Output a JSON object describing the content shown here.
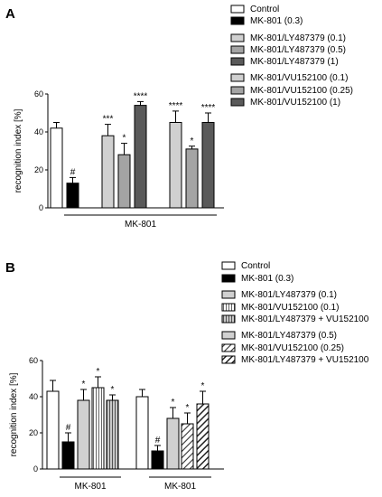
{
  "chart_data": [
    {
      "panel": "A",
      "type": "bar",
      "ylabel": "recognition index [%]",
      "ylim": [
        0,
        60
      ],
      "yticks": [
        0,
        20,
        40,
        60
      ],
      "legend_position": "top-right",
      "legend": [
        {
          "label": "Control",
          "pattern": "white"
        },
        {
          "label": "MK-801 (0.3)",
          "pattern": "black"
        },
        {
          "label": "MK-801/LY487379 (0.1)",
          "pattern": "lightgray"
        },
        {
          "label": "MK-801/LY487379 (0.5)",
          "pattern": "midgray"
        },
        {
          "label": "MK-801/LY487379 (1)",
          "pattern": "darkgray"
        },
        {
          "label": "MK-801/VU152100 (0.1)",
          "pattern": "lightgray"
        },
        {
          "label": "MK-801/VU152100 (0.25)",
          "pattern": "midgray"
        },
        {
          "label": "MK-801/VU152100 (1)",
          "pattern": "darkgray"
        }
      ],
      "bars": [
        {
          "value": 42,
          "error": 3,
          "pattern": "white",
          "sig": ""
        },
        {
          "value": 13,
          "error": 3,
          "pattern": "black",
          "sig": "#"
        },
        {
          "value": 38,
          "error": 6,
          "pattern": "lightgray",
          "sig": "***"
        },
        {
          "value": 28,
          "error": 6,
          "pattern": "midgray",
          "sig": "*"
        },
        {
          "value": 54,
          "error": 2,
          "pattern": "darkgray",
          "sig": "****"
        },
        {
          "value": 45,
          "error": 6,
          "pattern": "lightgray",
          "sig": "****"
        },
        {
          "value": 31,
          "error": 1.5,
          "pattern": "midgray",
          "sig": "*"
        },
        {
          "value": 45,
          "error": 5,
          "pattern": "darkgray",
          "sig": "****"
        }
      ],
      "group_labels": [
        {
          "label": "MK-801",
          "from_bar": 1,
          "to_bar": 7
        }
      ]
    },
    {
      "panel": "B",
      "type": "bar",
      "ylabel": "recognition index [%]",
      "ylim": [
        0,
        60
      ],
      "yticks": [
        0,
        20,
        40,
        60
      ],
      "legend_position": "top-right",
      "legend": [
        {
          "label": "Control",
          "pattern": "white"
        },
        {
          "label": "MK-801 (0.3)",
          "pattern": "black"
        },
        {
          "label": "MK-801/LY487379 (0.1)",
          "pattern": "lightgray"
        },
        {
          "label": "MK-801/VU152100 (0.1)",
          "pattern": "vstripe"
        },
        {
          "label": "MK-801/LY487379 + VU152100",
          "pattern": "vstripe-gray"
        },
        {
          "label": "MK-801/LY487379 (0.5)",
          "pattern": "lightgray"
        },
        {
          "label": "MK-801/VU152100 (0.25)",
          "pattern": "diag-light"
        },
        {
          "label": "MK-801/LY487379 + VU152100",
          "pattern": "diag-dark"
        }
      ],
      "bars": [
        {
          "value": 43,
          "error": 6,
          "pattern": "white",
          "sig": ""
        },
        {
          "value": 15,
          "error": 5,
          "pattern": "black",
          "sig": "#"
        },
        {
          "value": 38,
          "error": 6,
          "pattern": "lightgray",
          "sig": "*"
        },
        {
          "value": 45,
          "error": 6,
          "pattern": "vstripe",
          "sig": "*"
        },
        {
          "value": 38,
          "error": 3,
          "pattern": "vstripe-gray",
          "sig": "*"
        },
        {
          "value": 40,
          "error": 4,
          "pattern": "white",
          "sig": ""
        },
        {
          "value": 10,
          "error": 3,
          "pattern": "black",
          "sig": "#"
        },
        {
          "value": 28,
          "error": 6,
          "pattern": "lightgray",
          "sig": "*"
        },
        {
          "value": 25,
          "error": 6,
          "pattern": "diag-light",
          "sig": "*"
        },
        {
          "value": 36,
          "error": 7,
          "pattern": "diag-dark",
          "sig": "*"
        }
      ],
      "group_labels": [
        {
          "label": "MK-801",
          "from_bar": 1,
          "to_bar": 4
        },
        {
          "label": "MK-801",
          "from_bar": 6,
          "to_bar": 9
        }
      ]
    }
  ]
}
